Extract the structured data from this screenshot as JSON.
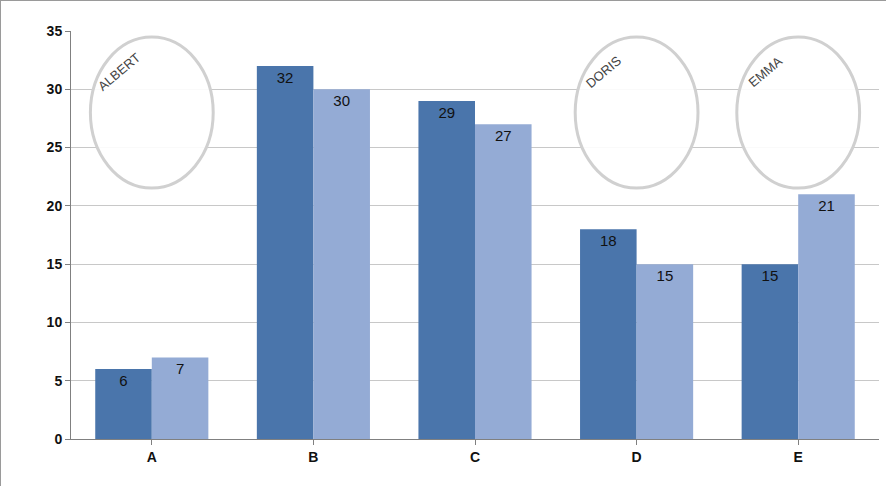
{
  "chart_data": {
    "type": "bar",
    "categories": [
      "A",
      "B",
      "C",
      "D",
      "E"
    ],
    "series": [
      {
        "color": "#4a75ab",
        "values": [
          6,
          32,
          29,
          18,
          15
        ]
      },
      {
        "color": "#94abd5",
        "values": [
          7,
          30,
          27,
          15,
          21
        ]
      }
    ],
    "ylim": [
      0,
      35
    ],
    "yticks": [
      0,
      5,
      10,
      15,
      20,
      25,
      30,
      35
    ],
    "grid": true,
    "data_labels": true,
    "annotations": [
      {
        "text": "ALBERT",
        "category": "A"
      },
      {
        "text": "DORIS",
        "category": "D"
      },
      {
        "text": "EMMA",
        "category": "E"
      }
    ]
  }
}
